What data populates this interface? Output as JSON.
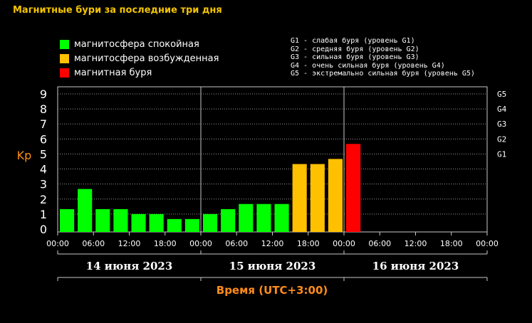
{
  "title": "Магнитные бури за последние три дня",
  "legend": [
    {
      "label": "магнитосфера спокойная",
      "color": "#00ff00"
    },
    {
      "label": "магнитосфера возбужденная",
      "color": "#ffc000"
    },
    {
      "label": "магнитная буря",
      "color": "#ff0000"
    }
  ],
  "storm_levels": [
    "G1 - слабая буря (уровень G1)",
    "G2 - средняя буря (уровень G2)",
    "G3 - сильная буря (уровень G3)",
    "G4 - очень сильная буря (уровень G4)",
    "G5 - экстремально сильная буря (уровень G5)"
  ],
  "chart_data": {
    "type": "bar",
    "ylabel": "Kp",
    "xlabel": "Время (UTC+3:00)",
    "ylim": [
      0,
      9
    ],
    "y_ticks": [
      "0",
      "1",
      "2",
      "3",
      "4",
      "5",
      "6",
      "7",
      "8",
      "9"
    ],
    "right_ticks": [
      {
        "label": "G1",
        "value": 5
      },
      {
        "label": "G2",
        "value": 6
      },
      {
        "label": "G3",
        "value": 7
      },
      {
        "label": "G4",
        "value": 8
      },
      {
        "label": "G5",
        "value": 9
      }
    ],
    "grid": true,
    "x_ticks": [
      "00:00",
      "06:00",
      "12:00",
      "18:00",
      "00:00",
      "06:00",
      "12:00",
      "18:00",
      "00:00",
      "06:00",
      "12:00",
      "18:00",
      "00:00"
    ],
    "days": [
      "14 июня 2023",
      "15 июня 2023",
      "16 июня 2023"
    ],
    "slots_total": 24,
    "values": [
      1.33,
      2.67,
      1.33,
      1.33,
      1.0,
      1.0,
      0.67,
      0.67,
      1.0,
      1.33,
      1.67,
      1.67,
      1.67,
      4.33,
      4.33,
      4.67,
      5.67
    ],
    "colors": [
      "#00ff00",
      "#00ff00",
      "#00ff00",
      "#00ff00",
      "#00ff00",
      "#00ff00",
      "#00ff00",
      "#00ff00",
      "#00ff00",
      "#00ff00",
      "#00ff00",
      "#00ff00",
      "#00ff00",
      "#ffc000",
      "#ffc000",
      "#ffc000",
      "#ff0000"
    ]
  }
}
